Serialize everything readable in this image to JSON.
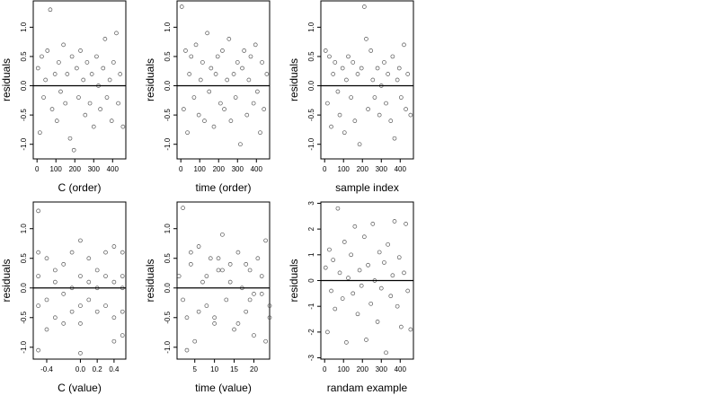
{
  "chart_data": [
    {
      "type": "scatter",
      "xlabel": "C (order)",
      "ylabel": "residuals",
      "color": "#555555",
      "hline": 0,
      "xlim": [
        -20,
        470
      ],
      "ylim": [
        -1.25,
        1.45
      ],
      "xticks": [
        0,
        100,
        200,
        300,
        400
      ],
      "yticks": [
        {
          "value": -1,
          "label": "-1.0"
        },
        -0.5,
        {
          "value": 0,
          "label": "0.0"
        },
        0.5,
        {
          "value": 1,
          "label": "1.0"
        }
      ],
      "x": [
        5,
        15,
        25,
        35,
        45,
        55,
        70,
        80,
        95,
        105,
        115,
        125,
        140,
        150,
        160,
        175,
        185,
        195,
        210,
        220,
        230,
        245,
        255,
        265,
        280,
        290,
        300,
        315,
        325,
        335,
        350,
        360,
        370,
        385,
        395,
        405,
        420,
        430,
        440,
        455
      ],
      "y": [
        0.3,
        -0.8,
        0.5,
        -0.2,
        0.1,
        0.6,
        1.3,
        -0.4,
        0.2,
        -0.6,
        0.4,
        -0.1,
        0.7,
        -0.3,
        0.2,
        -0.9,
        0.5,
        -1.1,
        0.3,
        -0.2,
        0.6,
        0.1,
        -0.5,
        0.4,
        -0.3,
        0.2,
        -0.7,
        0.5,
        0.0,
        -0.4,
        0.3,
        0.8,
        -0.2,
        0.1,
        -0.6,
        0.4,
        0.9,
        -0.3,
        0.2,
        -0.7
      ]
    },
    {
      "type": "scatter",
      "xlabel": "time (order)",
      "ylabel": "residuals",
      "color": "#555555",
      "hline": 0,
      "xlim": [
        -20,
        470
      ],
      "ylim": [
        -1.25,
        1.45
      ],
      "xticks": [
        0,
        100,
        200,
        300,
        400
      ],
      "yticks": [
        {
          "value": -1,
          "label": "-1.0"
        },
        -0.5,
        {
          "value": 0,
          "label": "0.0"
        },
        0.5,
        {
          "value": 1,
          "label": "1.0"
        }
      ],
      "x": [
        5,
        15,
        25,
        35,
        45,
        55,
        70,
        80,
        95,
        105,
        115,
        125,
        140,
        150,
        160,
        175,
        185,
        195,
        210,
        220,
        230,
        245,
        255,
        265,
        280,
        290,
        300,
        315,
        325,
        335,
        350,
        360,
        370,
        385,
        395,
        405,
        420,
        430,
        440,
        455
      ],
      "y": [
        1.35,
        -0.4,
        0.6,
        -0.8,
        0.2,
        0.5,
        -0.2,
        0.7,
        -0.5,
        0.1,
        0.4,
        -0.6,
        0.9,
        -0.1,
        0.3,
        -0.7,
        0.2,
        0.5,
        -0.3,
        0.6,
        -0.4,
        0.1,
        0.8,
        -0.6,
        0.2,
        -0.2,
        0.4,
        -1.0,
        0.3,
        0.6,
        -0.5,
        0.1,
        0.5,
        -0.3,
        0.7,
        -0.1,
        -0.8,
        0.4,
        -0.4,
        0.2
      ]
    },
    {
      "type": "scatter",
      "xlabel": "sample index",
      "ylabel": "residuals",
      "color": "#555555",
      "hline": 0,
      "xlim": [
        -20,
        470
      ],
      "ylim": [
        -1.25,
        1.45
      ],
      "xticks": [
        0,
        100,
        200,
        300,
        400
      ],
      "yticks": [
        {
          "value": -1,
          "label": "-1.0"
        },
        -0.5,
        {
          "value": 0,
          "label": "0.0"
        },
        0.5,
        {
          "value": 1,
          "label": "1.0"
        }
      ],
      "x": [
        5,
        15,
        25,
        35,
        45,
        55,
        70,
        80,
        95,
        105,
        115,
        125,
        140,
        150,
        160,
        175,
        185,
        195,
        210,
        220,
        230,
        245,
        255,
        265,
        280,
        290,
        300,
        315,
        325,
        335,
        350,
        360,
        370,
        385,
        395,
        405,
        420,
        430,
        440,
        455
      ],
      "y": [
        0.6,
        -0.3,
        0.5,
        -0.7,
        0.2,
        0.4,
        -0.1,
        -0.5,
        0.3,
        -0.8,
        0.1,
        0.5,
        -0.2,
        0.4,
        -0.6,
        0.2,
        -1.0,
        0.3,
        1.35,
        0.8,
        -0.4,
        0.6,
        0.1,
        -0.2,
        0.3,
        -0.5,
        0.0,
        0.4,
        -0.3,
        0.2,
        -0.6,
        0.5,
        -0.9,
        0.1,
        0.3,
        -0.2,
        0.7,
        -0.4,
        0.2,
        -0.5
      ]
    },
    {
      "type": "scatter",
      "xlabel": "C (value)",
      "ylabel": "residuals",
      "color": "#555555",
      "hline": 0,
      "xlim": [
        -0.56,
        0.54
      ],
      "ylim": [
        -1.2,
        1.45
      ],
      "xticks": [
        -0.4,
        {
          "value": 0,
          "label": "0.0"
        },
        0.2,
        0.4
      ],
      "yticks": [
        {
          "value": -1,
          "label": "-1.0"
        },
        -0.5,
        {
          "value": 0,
          "label": "0.0"
        },
        0.5,
        {
          "value": 1,
          "label": "1.0"
        }
      ],
      "x": [
        -0.5,
        -0.5,
        -0.5,
        -0.5,
        -0.4,
        -0.4,
        -0.4,
        -0.3,
        -0.3,
        -0.3,
        -0.2,
        -0.2,
        -0.2,
        -0.1,
        -0.1,
        -0.1,
        0.0,
        0.0,
        0.0,
        0.0,
        0.1,
        0.1,
        0.1,
        0.2,
        0.2,
        0.2,
        0.3,
        0.3,
        0.3,
        0.4,
        0.4,
        0.4,
        0.4,
        0.5,
        0.5,
        0.5,
        0.5,
        -0.5,
        0.0,
        0.5
      ],
      "y": [
        1.3,
        0.2,
        -0.3,
        -1.05,
        0.5,
        -0.2,
        -0.7,
        0.3,
        -0.5,
        0.1,
        0.4,
        -0.1,
        -0.6,
        0.6,
        0.0,
        -0.4,
        0.8,
        0.2,
        -0.3,
        -1.1,
        0.5,
        -0.2,
        0.1,
        0.3,
        -0.4,
        0.0,
        0.6,
        -0.3,
        0.2,
        0.7,
        0.1,
        -0.5,
        -0.9,
        0.6,
        0.2,
        -0.4,
        -0.8,
        0.6,
        -0.6,
        0.0
      ]
    },
    {
      "type": "scatter",
      "xlabel": "time (value)",
      "ylabel": "residuals",
      "color": "#555555",
      "hline": 0,
      "xlim": [
        0.5,
        24
      ],
      "ylim": [
        -1.2,
        1.45
      ],
      "xticks": [
        5,
        10,
        15,
        20
      ],
      "yticks": [
        {
          "value": -1,
          "label": "-1.0"
        },
        -0.5,
        {
          "value": 0,
          "label": "0.0"
        },
        0.5,
        {
          "value": 1,
          "label": "1.0"
        }
      ],
      "x": [
        1,
        2,
        3,
        4,
        5,
        6,
        7,
        8,
        9,
        10,
        11,
        12,
        13,
        14,
        15,
        16,
        17,
        18,
        19,
        20,
        21,
        22,
        23,
        24,
        2,
        4,
        6,
        8,
        10,
        12,
        14,
        16,
        18,
        20,
        22,
        24,
        3,
        11,
        19,
        23
      ],
      "y": [
        0.2,
        1.35,
        -0.5,
        0.4,
        -0.9,
        0.7,
        0.1,
        -0.3,
        0.5,
        -0.6,
        0.3,
        0.9,
        -0.2,
        0.4,
        -0.7,
        0.6,
        0.0,
        -0.4,
        0.3,
        -0.8,
        0.5,
        -0.1,
        0.8,
        -0.3,
        -0.2,
        0.6,
        -0.4,
        0.2,
        -0.5,
        0.3,
        0.1,
        -0.6,
        0.4,
        -0.1,
        0.2,
        -0.5,
        -1.05,
        0.5,
        -0.2,
        -0.9
      ]
    },
    {
      "type": "scatter",
      "xlabel": "randam example",
      "ylabel": "residuals",
      "color": "#555555",
      "hline": 0,
      "xlim": [
        -20,
        470
      ],
      "ylim": [
        -3.05,
        3.05
      ],
      "xticks": [
        0,
        100,
        200,
        300,
        400
      ],
      "yticks": [
        -3,
        -2,
        -1,
        0,
        1,
        2,
        3
      ],
      "x": [
        5,
        15,
        25,
        35,
        45,
        55,
        70,
        80,
        95,
        105,
        115,
        125,
        140,
        150,
        160,
        175,
        185,
        195,
        210,
        220,
        230,
        245,
        255,
        265,
        280,
        290,
        300,
        315,
        325,
        335,
        350,
        360,
        370,
        385,
        395,
        405,
        420,
        430,
        440,
        455
      ],
      "y": [
        0.5,
        -2.0,
        1.2,
        -0.4,
        0.8,
        -1.1,
        2.8,
        0.3,
        -0.7,
        1.5,
        -2.4,
        0.1,
        1.0,
        -0.5,
        2.1,
        -1.3,
        0.4,
        -0.2,
        1.7,
        -2.3,
        0.6,
        -0.9,
        2.2,
        0.0,
        -1.6,
        1.1,
        -0.3,
        0.7,
        -2.8,
        1.4,
        -0.6,
        0.2,
        2.3,
        -1.0,
        0.9,
        -1.8,
        0.3,
        2.2,
        -0.4,
        -1.9
      ]
    }
  ]
}
